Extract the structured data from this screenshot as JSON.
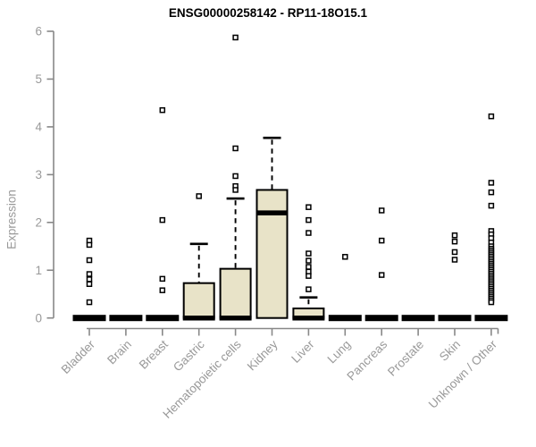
{
  "chart_data": {
    "type": "boxplot",
    "title": "ENSG00000258142 - RP11-18O15.1",
    "xlabel": "",
    "ylabel": "Expression",
    "ylim": [
      0,
      6
    ],
    "yticks": [
      0,
      1,
      2,
      3,
      4,
      5,
      6
    ],
    "grid": false,
    "legend": "none",
    "categories": [
      "Bladder",
      "Brain",
      "Breast",
      "Gastric",
      "Hematopoietic cells",
      "Kidney",
      "Liver",
      "Lung",
      "Pancreas",
      "Prostate",
      "Skin",
      "Unknown / Other"
    ],
    "series": [
      {
        "category": "Bladder",
        "min": 0,
        "q1": 0,
        "median": 0,
        "q3": 0,
        "max": 0,
        "outliers": [
          1.62,
          1.53,
          1.21,
          0.92,
          0.81,
          0.71,
          0.33
        ]
      },
      {
        "category": "Brain",
        "min": 0,
        "q1": 0,
        "median": 0,
        "q3": 0,
        "max": 0,
        "outliers": []
      },
      {
        "category": "Breast",
        "min": 0,
        "q1": 0,
        "median": 0,
        "q3": 0,
        "max": 0,
        "outliers": [
          4.35,
          2.05,
          0.82,
          0.58
        ]
      },
      {
        "category": "Gastric",
        "min": 0,
        "q1": 0,
        "median": 0,
        "q3": 0.73,
        "max": 1.55,
        "outliers": [
          2.55
        ]
      },
      {
        "category": "Hematopoietic cells",
        "min": 0,
        "q1": 0,
        "median": 0,
        "q3": 1.03,
        "max": 2.5,
        "outliers": [
          5.87,
          3.55,
          2.97,
          2.76,
          2.68
        ]
      },
      {
        "category": "Kidney",
        "min": 0,
        "q1": 0,
        "median": 2.2,
        "q3": 2.68,
        "max": 3.77,
        "outliers": []
      },
      {
        "category": "Liver",
        "min": 0,
        "q1": 0,
        "median": 0,
        "q3": 0.2,
        "max": 0.43,
        "outliers": [
          2.32,
          2.05,
          1.78,
          1.35,
          1.2,
          1.07,
          0.97,
          0.88,
          0.6
        ]
      },
      {
        "category": "Lung",
        "min": 0,
        "q1": 0,
        "median": 0,
        "q3": 0,
        "max": 0,
        "outliers": [
          1.28
        ]
      },
      {
        "category": "Pancreas",
        "min": 0,
        "q1": 0,
        "median": 0,
        "q3": 0,
        "max": 0,
        "outliers": [
          2.25,
          1.62,
          0.9
        ]
      },
      {
        "category": "Prostate",
        "min": 0,
        "q1": 0,
        "median": 0,
        "q3": 0,
        "max": 0,
        "outliers": []
      },
      {
        "category": "Skin",
        "min": 0,
        "q1": 0,
        "median": 0,
        "q3": 0,
        "max": 0,
        "outliers": [
          1.73,
          1.6,
          1.38,
          1.22
        ]
      },
      {
        "category": "Unknown / Other",
        "min": 0,
        "q1": 0,
        "median": 0,
        "q3": 0,
        "max": 0,
        "outliers": [
          4.22,
          2.83,
          2.63,
          2.35,
          1.82,
          1.75,
          1.67,
          1.58,
          1.5,
          1.45,
          1.41,
          1.37,
          1.33,
          1.29,
          1.25,
          1.21,
          1.17,
          1.13,
          1.09,
          1.05,
          1.01,
          0.97,
          0.93,
          0.89,
          0.85,
          0.81,
          0.77,
          0.73,
          0.69,
          0.65,
          0.61,
          0.57,
          0.53,
          0.49,
          0.45,
          0.41,
          0.37,
          0.33
        ]
      }
    ],
    "colors": {
      "box_fill": "#e8e3c8",
      "box_stroke": "#000000",
      "median": "#000000",
      "whisker": "#000000",
      "outlier_stroke": "#000000",
      "outlier_fill": "#ffffff",
      "axis_line": "#888888",
      "tick_label": "#999999",
      "title": "#000000"
    }
  }
}
